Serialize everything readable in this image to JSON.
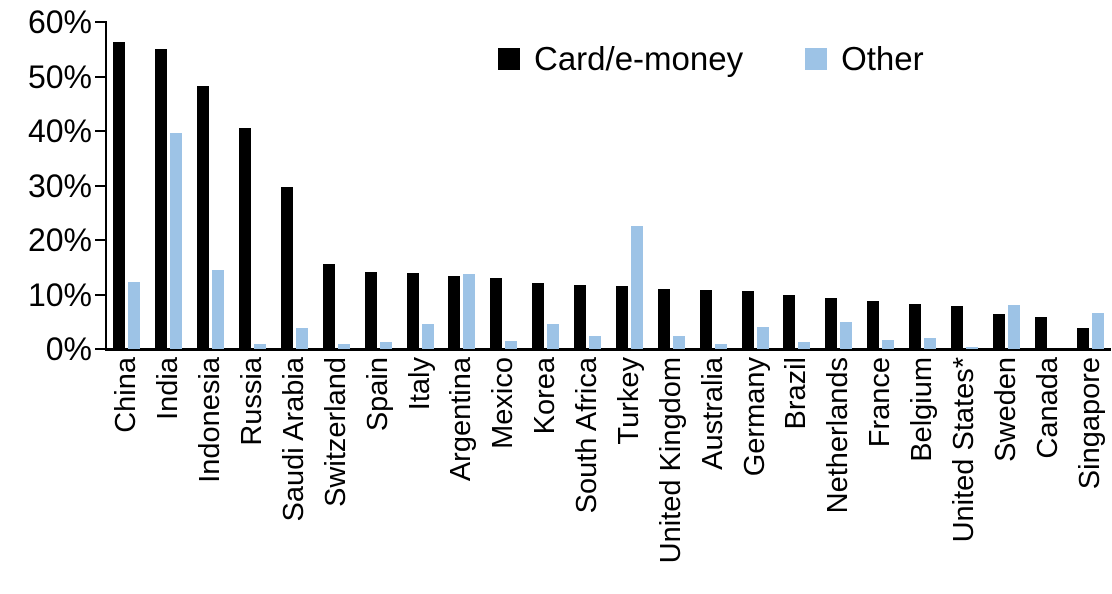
{
  "chart_data": {
    "type": "bar",
    "title": "",
    "xlabel": "",
    "ylabel": "",
    "ylim": [
      0,
      60
    ],
    "yticks": [
      {
        "label": "0%",
        "value": 0
      },
      {
        "label": "10%",
        "value": 10
      },
      {
        "label": "20%",
        "value": 20
      },
      {
        "label": "30%",
        "value": 30
      },
      {
        "label": "40%",
        "value": 40
      },
      {
        "label": "50%",
        "value": 50
      },
      {
        "label": "60%",
        "value": 60
      }
    ],
    "grid": false,
    "legend_position": "top-center",
    "categories": [
      "China",
      "India",
      "Indonesia",
      "Russia",
      "Saudi Arabia",
      "Switzerland",
      "Spain",
      "Italy",
      "Argentina",
      "Mexico",
      "Korea",
      "South Africa",
      "Turkey",
      "United Kingdom",
      "Australia",
      "Germany",
      "Brazil",
      "Netherlands",
      "France",
      "Belgium",
      "United States*",
      "Sweden",
      "Canada",
      "Singapore"
    ],
    "series": [
      {
        "name": "Card/e-money",
        "color": "#000000",
        "values": [
          56.3,
          55.0,
          48.3,
          40.5,
          29.8,
          15.6,
          14.1,
          14.0,
          13.4,
          13.0,
          12.2,
          11.7,
          11.6,
          11.0,
          10.8,
          10.6,
          10.0,
          9.3,
          8.8,
          8.2,
          7.9,
          6.5,
          5.9,
          3.9
        ]
      },
      {
        "name": "Other",
        "color": "#9dc3e6",
        "values": [
          12.3,
          39.7,
          14.5,
          1.0,
          3.9,
          1.0,
          1.2,
          4.6,
          13.8,
          1.4,
          4.6,
          2.4,
          22.5,
          2.4,
          1.0,
          4.0,
          1.2,
          4.9,
          1.6,
          2.0,
          0.3,
          8.1,
          0.0,
          6.6
        ]
      }
    ]
  },
  "legend": {
    "items": [
      {
        "label": "Card/e-money",
        "color": "#000000"
      },
      {
        "label": "Other",
        "color": "#9dc3e6"
      }
    ]
  }
}
